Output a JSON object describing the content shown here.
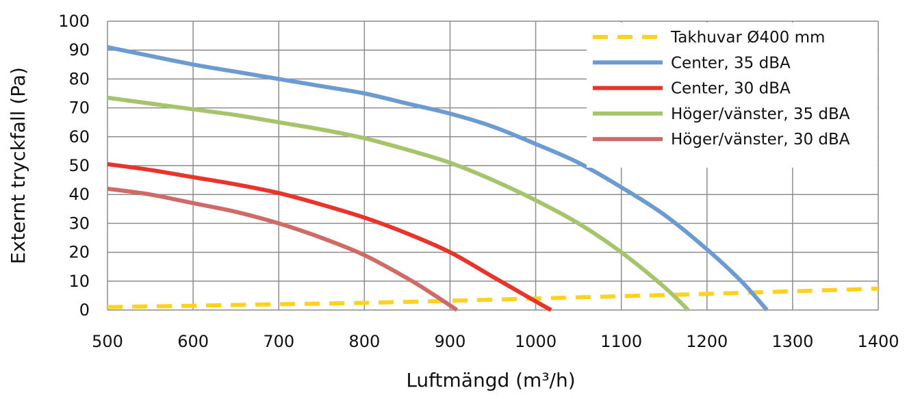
{
  "chart_data": {
    "type": "line",
    "title": "",
    "xlabel": "Luftmängd (m³/h)",
    "ylabel": "Externt tryckfall (Pa)",
    "xlim": [
      500,
      1400
    ],
    "ylim": [
      0,
      100
    ],
    "xticks": [
      500,
      600,
      700,
      800,
      900,
      1000,
      1100,
      1200,
      1300,
      1400
    ],
    "yticks": [
      0,
      10,
      20,
      30,
      40,
      50,
      60,
      70,
      80,
      90,
      100
    ],
    "grid": true,
    "legend": "top-right",
    "series": [
      {
        "name": "Takhuvar Ø400 mm",
        "color": "#FFD21F",
        "dashed": true,
        "x": [
          500,
          600,
          700,
          800,
          900,
          1000,
          1100,
          1200,
          1300,
          1400
        ],
        "y": [
          1,
          1.5,
          2,
          2.5,
          3.2,
          4,
          4.8,
          5.6,
          6.5,
          7.4
        ]
      },
      {
        "name": "Center, 35 dBA",
        "color": "#6B9BD1",
        "dashed": false,
        "x": [
          500,
          550,
          600,
          650,
          700,
          750,
          800,
          850,
          900,
          950,
          1000,
          1050,
          1100,
          1150,
          1200,
          1240,
          1270
        ],
        "y": [
          91,
          88,
          85,
          82.5,
          80,
          77.5,
          75,
          71.5,
          68,
          63.5,
          57.5,
          51,
          42.5,
          33,
          21,
          10,
          0
        ]
      },
      {
        "name": "Center, 30 dBA",
        "color": "#E8342A",
        "dashed": false,
        "x": [
          500,
          550,
          600,
          650,
          700,
          750,
          800,
          850,
          900,
          950,
          1000,
          1018
        ],
        "y": [
          50.5,
          48.5,
          46,
          43.5,
          40.5,
          36.5,
          32,
          26.5,
          20,
          11.5,
          3,
          0
        ]
      },
      {
        "name": "Höger/vänster, 35 dBA",
        "color": "#A5C46B",
        "dashed": false,
        "x": [
          500,
          550,
          600,
          650,
          700,
          750,
          800,
          850,
          900,
          950,
          1000,
          1050,
          1100,
          1150,
          1178
        ],
        "y": [
          73.5,
          71.5,
          69.5,
          67.5,
          65,
          62.5,
          59.5,
          55.5,
          51,
          45,
          38,
          30,
          20,
          8,
          0
        ]
      },
      {
        "name": "Höger/vänster, 30 dBA",
        "color": "#D06A66",
        "dashed": false,
        "x": [
          500,
          550,
          600,
          650,
          700,
          750,
          800,
          850,
          880,
          908
        ],
        "y": [
          42,
          40,
          37,
          34,
          30,
          25,
          19,
          11,
          5.5,
          0
        ]
      }
    ]
  }
}
